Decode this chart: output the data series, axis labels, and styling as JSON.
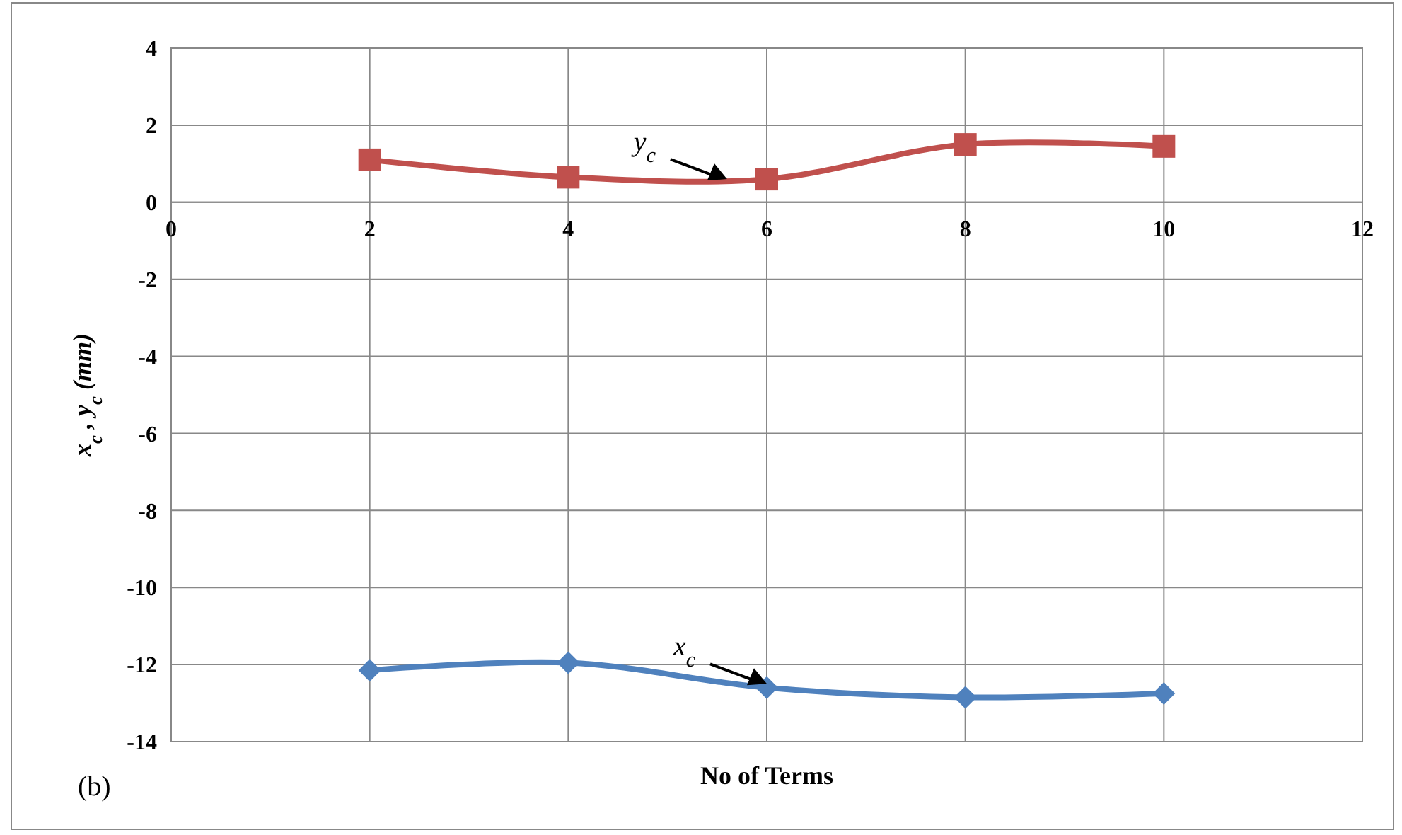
{
  "chart_data": {
    "type": "line",
    "xlabel": "No of Terms",
    "ylabel": "x$_{c}$ , y$_{c}$ (mm)",
    "xlim": [
      0,
      12
    ],
    "xticks": [
      0,
      2,
      4,
      6,
      8,
      10,
      12
    ],
    "ylim": [
      -14,
      4
    ],
    "yticks": [
      -14,
      -12,
      -10,
      -8,
      -6,
      -4,
      -2,
      0,
      2,
      4
    ],
    "grid": true,
    "series": [
      {
        "color": "#c0504d",
        "marker": "square",
        "x": [
          2,
          4,
          6,
          8,
          10
        ],
        "values": [
          1.1,
          0.65,
          0.6,
          1.5,
          1.45
        ]
      },
      {
        "color": "#4f81bd",
        "marker": "diamond",
        "x": [
          2,
          4,
          6,
          8,
          10
        ],
        "values": [
          -12.15,
          -11.95,
          -12.6,
          -12.85,
          -12.75
        ]
      }
    ],
    "annotations": [
      {
        "text": "y$_{c}$",
        "x": 5.6,
        "y": 0.6
      },
      {
        "text": "x$_{c}$",
        "x": 6,
        "y": -12.5
      },
      "(b)"
    ]
  }
}
